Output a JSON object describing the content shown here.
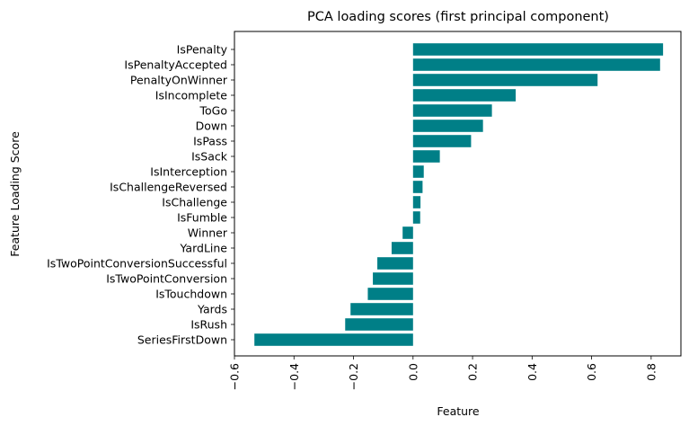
{
  "chart_data": {
    "type": "bar",
    "orientation": "horizontal",
    "title": "PCA loading scores (first principal component)",
    "xlabel": "Feature",
    "ylabel": "Feature Loading Score",
    "xlim": [
      -0.6,
      0.9
    ],
    "x_ticks": [
      -0.6,
      -0.4,
      -0.2,
      0.0,
      0.2,
      0.4,
      0.6,
      0.8
    ],
    "x_tick_labels": [
      "−0.6",
      "−0.4",
      "−0.2",
      "0.0",
      "0.2",
      "0.4",
      "0.6",
      "0.8"
    ],
    "x_tick_rotation": "vertical",
    "grid": false,
    "bar_color": "#007f87",
    "categories": [
      "IsPenalty",
      "IsPenaltyAccepted",
      "PenaltyOnWinner",
      "IsIncomplete",
      "ToGo",
      "Down",
      "IsPass",
      "IsSack",
      "IsInterception",
      "IsChallengeReversed",
      "IsChallenge",
      "IsFumble",
      "Winner",
      "YardLine",
      "IsTwoPointConversionSuccessful",
      "IsTwoPointConversion",
      "IsTouchdown",
      "Yards",
      "IsRush",
      "SeriesFirstDown"
    ],
    "values": [
      0.84,
      0.83,
      0.62,
      0.345,
      0.265,
      0.235,
      0.195,
      0.09,
      0.036,
      0.032,
      0.025,
      0.024,
      -0.035,
      -0.072,
      -0.12,
      -0.135,
      -0.152,
      -0.21,
      -0.228,
      -0.533
    ]
  }
}
